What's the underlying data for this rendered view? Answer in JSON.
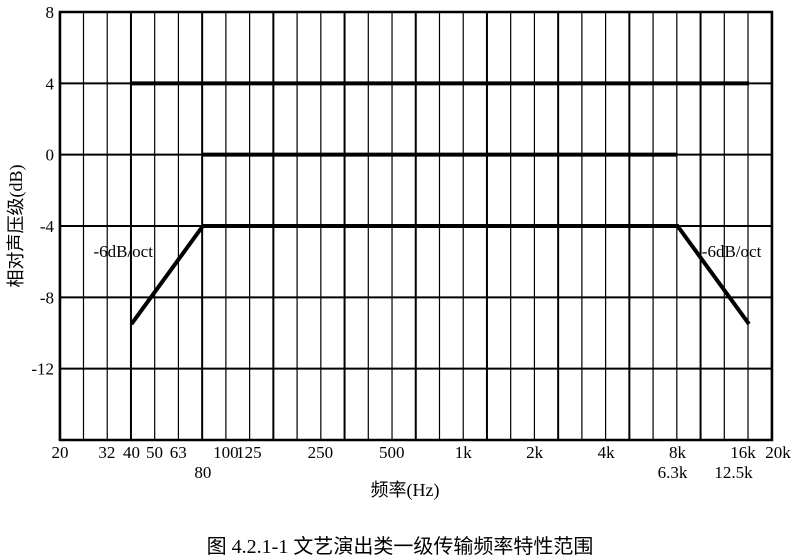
{
  "chart_data": {
    "type": "line",
    "caption": "图 4.2.1-1   文艺演出类一级传输频率特性范围",
    "xlabel": "频率(Hz)",
    "ylabel": "相对声压级(dB)",
    "xscale": "log",
    "xlim": [
      20,
      20000
    ],
    "ylim": [
      -16,
      8
    ],
    "grid": true,
    "y_ticks": [
      8,
      4,
      0,
      -4,
      -8,
      -12
    ],
    "x_ticks": [
      {
        "value": 20,
        "label": "20"
      },
      {
        "value": 31.5,
        "label": "32"
      },
      {
        "value": 40,
        "label": "40"
      },
      {
        "value": 50,
        "label": "50"
      },
      {
        "value": 63,
        "label": "63"
      },
      {
        "value": 80,
        "label": "80"
      },
      {
        "value": 100,
        "label": "100"
      },
      {
        "value": 125,
        "label": "125"
      },
      {
        "value": 250,
        "label": "250"
      },
      {
        "value": 500,
        "label": "500"
      },
      {
        "value": 1000,
        "label": "1k"
      },
      {
        "value": 2000,
        "label": "2k"
      },
      {
        "value": 4000,
        "label": "4k"
      },
      {
        "value": 6300,
        "label": "6.3k"
      },
      {
        "value": 8000,
        "label": "8k"
      },
      {
        "value": 12500,
        "label": "12.5k"
      },
      {
        "value": 16000,
        "label": "16k"
      },
      {
        "value": 20000,
        "label": "20k"
      }
    ],
    "series": [
      {
        "x": [
          40,
          16000
        ],
        "y": [
          4,
          4
        ]
      },
      {
        "x": [
          80,
          8000
        ],
        "y": [
          0,
          0
        ]
      },
      {
        "x": [
          40,
          80,
          8000,
          16000
        ],
        "y": [
          -9.5,
          -4,
          -4,
          -9.5
        ]
      }
    ],
    "annotations": [
      {
        "text": "-6dB/oct",
        "x": 40,
        "y": -5.5
      },
      {
        "text": "-6dB/oct",
        "x": 8500,
        "y": -5.5
      }
    ],
    "colors": {
      "line": "#000000",
      "grid": "#000000"
    }
  }
}
